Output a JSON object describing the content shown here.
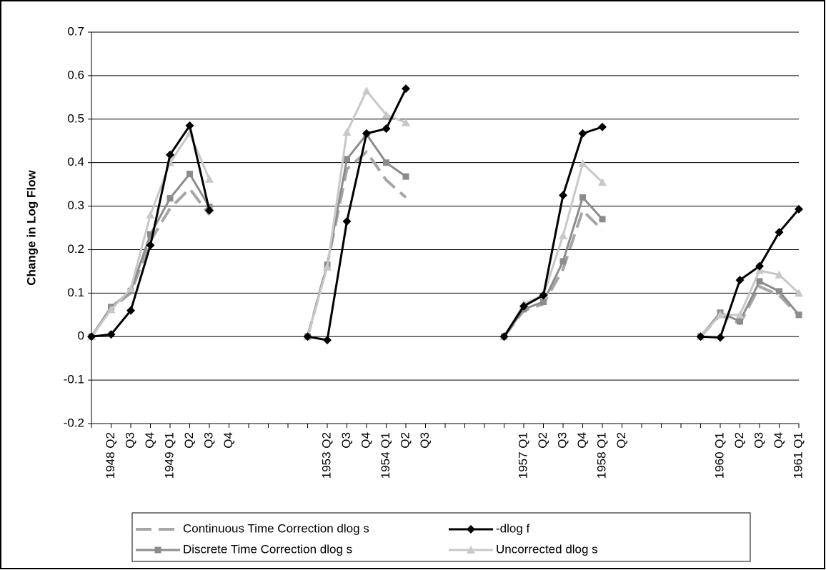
{
  "chart_data": {
    "type": "line",
    "y_label": "Change in Log Flow",
    "categories": [
      null,
      "1948 Q2",
      "Q3",
      "Q4",
      "1949 Q1",
      "Q2",
      "Q3",
      "Q4",
      null,
      null,
      null,
      null,
      "1953 Q2",
      "Q3",
      "Q4",
      "1954 Q1",
      "Q2",
      "Q3",
      null,
      null,
      null,
      null,
      "1957 Q1",
      "Q2",
      "Q3",
      "Q4",
      "1958 Q1",
      "Q2",
      null,
      null,
      null,
      null,
      "1960 Q1",
      "Q2",
      "Q3",
      "Q4",
      "1961 Q1"
    ],
    "series": [
      {
        "name": "Continuous Time Correction dlog s",
        "color": "#a6a6a6",
        "dash": true,
        "values": [
          0,
          0.065,
          0.1,
          0.22,
          0.295,
          0.34,
          0.28,
          null,
          null,
          null,
          null,
          0,
          0.165,
          0.385,
          0.425,
          0.36,
          0.32,
          null,
          null,
          null,
          null,
          0,
          0.06,
          0.075,
          0.155,
          0.29,
          0.245,
          null,
          null,
          null,
          null,
          0,
          0.05,
          0.03,
          0.115,
          0.095,
          0.048
        ]
      },
      {
        "name": "-dlog f",
        "color": "#000000",
        "marker": "diamond",
        "values": [
          0,
          0.005,
          0.06,
          0.21,
          0.418,
          0.485,
          0.29,
          null,
          null,
          null,
          null,
          0,
          -0.008,
          0.265,
          0.467,
          0.478,
          0.57,
          null,
          null,
          null,
          null,
          0,
          0.07,
          0.095,
          0.325,
          0.467,
          0.482,
          null,
          null,
          null,
          null,
          0,
          -0.002,
          0.13,
          0.162,
          0.24,
          0.293
        ]
      },
      {
        "name": "Discrete Time Correction dlog s",
        "color": "#8c8c8c",
        "marker": "square",
        "values": [
          0,
          0.068,
          0.105,
          0.235,
          0.318,
          0.374,
          0.298,
          null,
          null,
          null,
          null,
          0,
          0.165,
          0.408,
          0.465,
          0.4,
          0.368,
          null,
          null,
          null,
          null,
          0,
          0.063,
          0.08,
          0.173,
          0.32,
          0.27,
          null,
          null,
          null,
          null,
          0,
          0.055,
          0.035,
          0.127,
          0.104,
          0.05
        ]
      },
      {
        "name": "Uncorrected dlog s",
        "color": "#c8c8c8",
        "marker": "triangle",
        "values": [
          0,
          0.062,
          0.11,
          0.28,
          0.4,
          0.468,
          0.362,
          null,
          null,
          null,
          null,
          0,
          0.16,
          0.47,
          0.565,
          0.51,
          0.492,
          null,
          null,
          null,
          null,
          0,
          0.075,
          0.095,
          0.232,
          0.398,
          0.355,
          null,
          null,
          null,
          null,
          0,
          0.05,
          0.05,
          0.152,
          0.142,
          0.1
        ]
      }
    ],
    "ylim": [
      -0.2,
      0.7
    ],
    "yticks": [
      -0.2,
      -0.1,
      0,
      0.1,
      0.2,
      0.3,
      0.4,
      0.5,
      0.6,
      0.7
    ],
    "grid": true
  }
}
